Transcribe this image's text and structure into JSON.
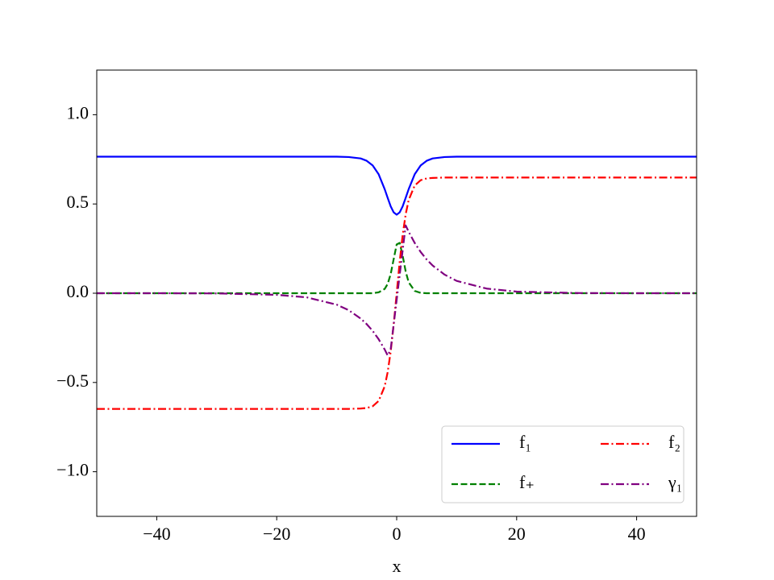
{
  "chart_data": {
    "type": "line",
    "xlabel": "x",
    "x": [
      -50,
      -40,
      -30,
      -20,
      -15,
      -10,
      -8,
      -6,
      -5,
      -4,
      -3,
      -2,
      -1.5,
      -1,
      -0.5,
      0,
      0.5,
      1,
      1.5,
      2,
      3,
      4,
      5,
      6,
      8,
      10,
      15,
      20,
      30,
      40,
      50
    ],
    "series": [
      {
        "name": "f₁",
        "color": "#0000ff",
        "linestyle": "solid",
        "values": [
          0.765,
          0.765,
          0.765,
          0.765,
          0.765,
          0.765,
          0.763,
          0.755,
          0.742,
          0.716,
          0.666,
          0.583,
          0.534,
          0.487,
          0.453,
          0.44,
          0.453,
          0.487,
          0.534,
          0.583,
          0.666,
          0.716,
          0.742,
          0.755,
          0.763,
          0.765,
          0.765,
          0.765,
          0.765,
          0.765,
          0.765
        ]
      },
      {
        "name": "f₊",
        "color": "#008000",
        "linestyle": "dashed",
        "values": [
          0,
          0,
          0,
          0,
          0,
          0,
          0,
          0,
          0,
          0,
          0.005,
          0.024,
          0.052,
          0.107,
          0.191,
          0.273,
          0.282,
          0.21,
          0.122,
          0.061,
          0.013,
          0.002,
          0,
          0,
          0,
          0,
          0,
          0,
          0,
          0,
          0
        ]
      },
      {
        "name": "f₂",
        "color": "#ff0000",
        "linestyle": "dashdot",
        "values": [
          -0.648,
          -0.648,
          -0.648,
          -0.648,
          -0.648,
          -0.648,
          -0.648,
          -0.646,
          -0.643,
          -0.633,
          -0.603,
          -0.522,
          -0.442,
          -0.327,
          -0.176,
          0,
          0.176,
          0.327,
          0.442,
          0.522,
          0.603,
          0.633,
          0.643,
          0.646,
          0.648,
          0.648,
          0.648,
          0.648,
          0.648,
          0.648,
          0.648
        ]
      },
      {
        "name": "γ₁",
        "color": "#800080",
        "linestyle": "dashdot",
        "values": [
          0,
          0,
          -0.001,
          -0.009,
          -0.023,
          -0.064,
          -0.095,
          -0.142,
          -0.173,
          -0.211,
          -0.258,
          -0.315,
          -0.349,
          -0.314,
          -0.175,
          -0.037,
          0.102,
          0.241,
          0.38,
          0.344,
          0.282,
          0.231,
          0.189,
          0.155,
          0.104,
          0.069,
          0.026,
          0.009,
          0.001,
          0,
          0
        ]
      }
    ],
    "xlim": [
      -50,
      50
    ],
    "xticks": [
      {
        "value": -40,
        "label": "−40"
      },
      {
        "value": -20,
        "label": "−20"
      },
      0,
      20,
      40
    ],
    "ylim": [
      -1.25,
      1.25
    ],
    "yticks": [
      {
        "value": -1,
        "label": "−1.0"
      },
      {
        "value": -0.5,
        "label": "−0.5"
      },
      {
        "value": 0,
        "label": "0.0"
      },
      0.5,
      {
        "value": 1,
        "label": "1.0"
      }
    ],
    "legend": "lower right",
    "legend_columns": 2
  }
}
